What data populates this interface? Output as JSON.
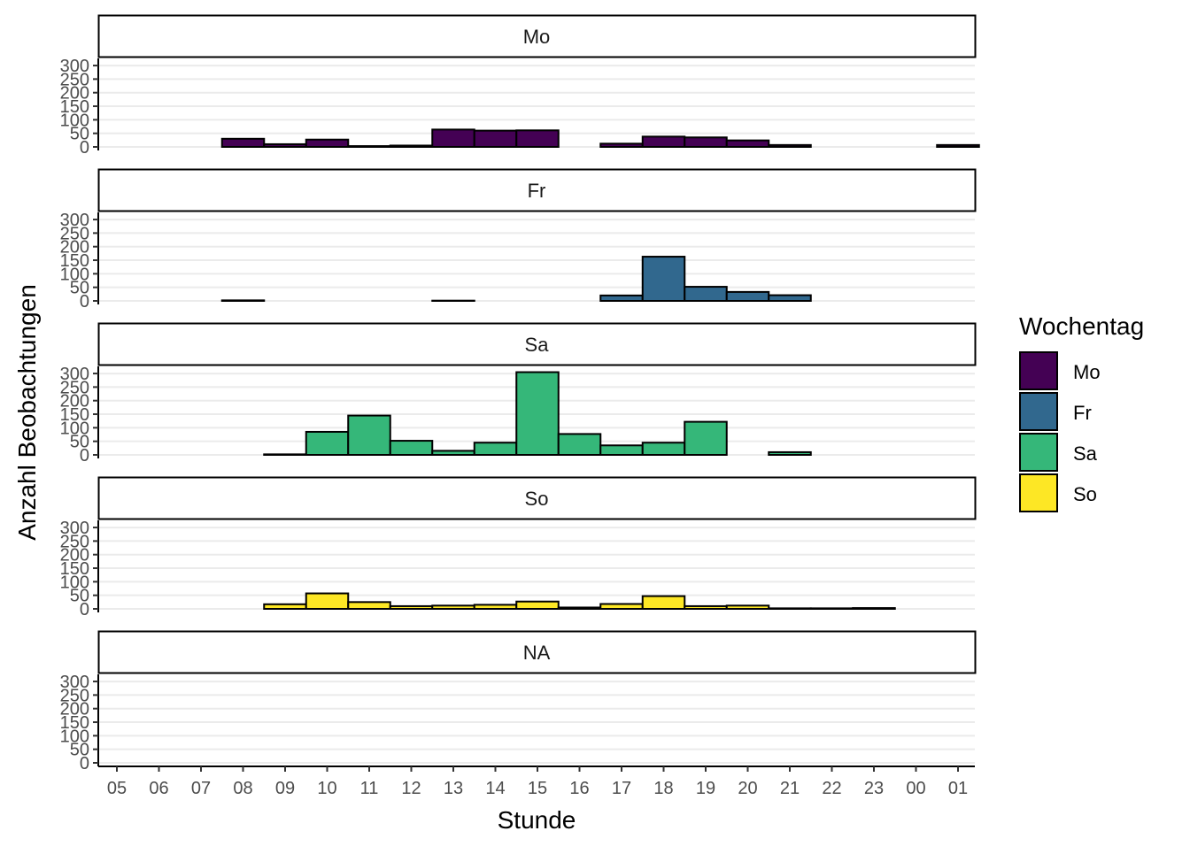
{
  "chart_data": {
    "type": "bar",
    "facet_by": "Wochentag",
    "xlabel": "Stunde",
    "ylabel": "Anzahl Beobachtungen",
    "ylim": [
      0,
      310
    ],
    "yticks": [
      0,
      50,
      100,
      150,
      200,
      250,
      300
    ],
    "categories": [
      "05",
      "06",
      "07",
      "08",
      "09",
      "10",
      "11",
      "12",
      "13",
      "14",
      "15",
      "16",
      "17",
      "18",
      "19",
      "20",
      "21",
      "22",
      "23",
      "00",
      "01"
    ],
    "grid": "horizontal",
    "legend": {
      "title": "Wochentag",
      "position": "right",
      "entries": [
        {
          "label": "Mo",
          "color": "#440154"
        },
        {
          "label": "Fr",
          "color": "#31688E"
        },
        {
          "label": "Sa",
          "color": "#35B779"
        },
        {
          "label": "So",
          "color": "#FDE725"
        }
      ]
    },
    "series": [
      {
        "name": "Mo",
        "color": "#440154",
        "values": [
          0,
          0,
          30,
          10,
          27,
          3,
          5,
          64,
          60,
          61,
          0,
          12,
          38,
          35,
          24,
          7,
          0,
          0,
          0,
          7,
          null
        ]
      },
      {
        "name": "Fr",
        "color": "#31688E",
        "values": [
          0,
          0,
          2,
          0,
          0,
          0,
          0,
          1,
          0,
          0,
          0,
          20,
          163,
          52,
          33,
          21,
          0,
          0,
          0,
          0,
          null
        ]
      },
      {
        "name": "Sa",
        "color": "#35B779",
        "values": [
          0,
          0,
          0,
          2,
          85,
          145,
          52,
          15,
          45,
          305,
          77,
          35,
          45,
          122,
          0,
          10,
          0,
          0,
          0,
          0,
          null
        ]
      },
      {
        "name": "So",
        "color": "#FDE725",
        "values": [
          0,
          0,
          0,
          17,
          57,
          25,
          10,
          12,
          15,
          27,
          5,
          18,
          47,
          10,
          12,
          2,
          2,
          3,
          0,
          0,
          null
        ]
      },
      {
        "name": "NA",
        "color": "#808080",
        "values": [
          null,
          null,
          null,
          null,
          null,
          null,
          null,
          null,
          null,
          null,
          null,
          null,
          null,
          null,
          null,
          null,
          null,
          null,
          null,
          null,
          null
        ]
      }
    ]
  }
}
